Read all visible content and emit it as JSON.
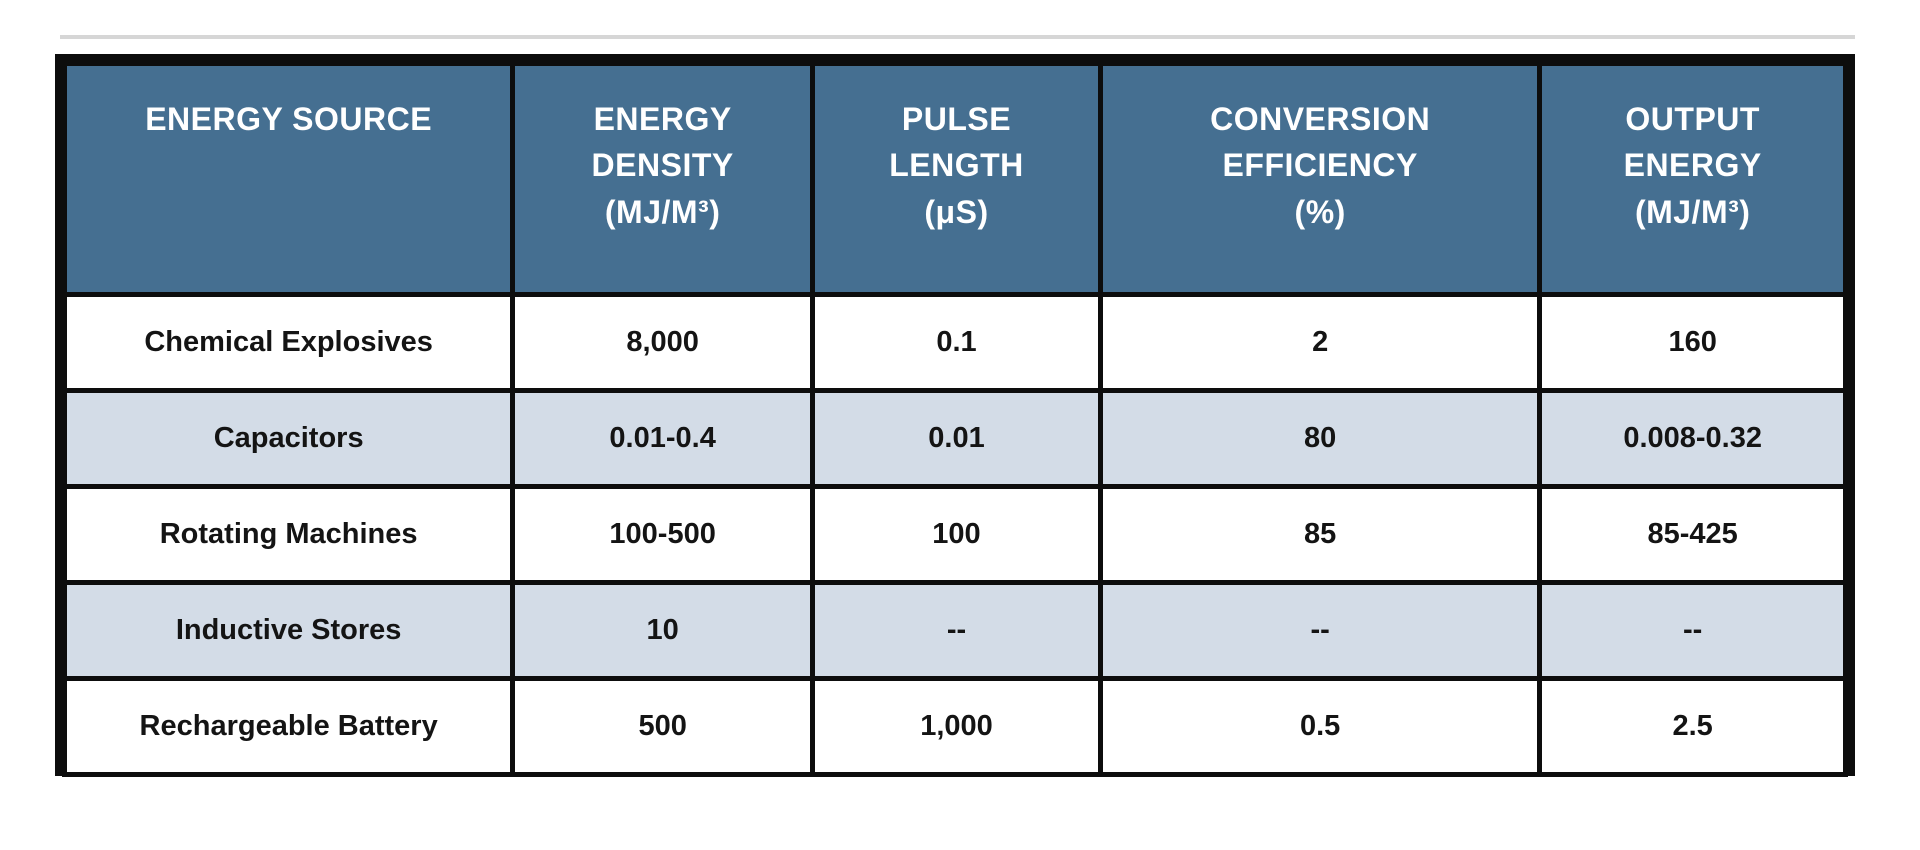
{
  "colors": {
    "header_bg": "#456F91",
    "header_text": "#FFFFFF",
    "row_bg": "#FFFFFF",
    "row_alt_bg": "#D3DCE7",
    "border": "#0D0D0D",
    "cell_text": "#141414"
  },
  "table": {
    "headers": [
      {
        "label": "ENERGY SOURCE"
      },
      {
        "label": "ENERGY\nDENSITY\n(MJ/M³)"
      },
      {
        "label": "PULSE\nLENGTH\n(μS)"
      },
      {
        "label": "CONVERSION\nEFFICIENCY\n(%)"
      },
      {
        "label": "OUTPUT\nENERGY\n(MJ/M³)"
      }
    ],
    "rows": [
      {
        "cells": [
          "Chemical Explosives",
          "8,000",
          "0.1",
          "2",
          "160"
        ]
      },
      {
        "cells": [
          "Capacitors",
          "0.01-0.4",
          "0.01",
          "80",
          "0.008-0.32"
        ]
      },
      {
        "cells": [
          "Rotating Machines",
          "100-500",
          "100",
          "85",
          "85-425"
        ]
      },
      {
        "cells": [
          "Inductive Stores",
          "10",
          "--",
          "--",
          "--"
        ]
      },
      {
        "cells": [
          "Rechargeable Battery",
          "500",
          "1,000",
          "0.5",
          "2.5"
        ]
      }
    ]
  },
  "chart_data": {
    "type": "table",
    "title": "",
    "columns": [
      "ENERGY SOURCE",
      "ENERGY DENSITY (MJ/M³)",
      "PULSE LENGTH (μS)",
      "CONVERSION EFFICIENCY (%)",
      "OUTPUT ENERGY (MJ/M³)"
    ],
    "rows": [
      [
        "Chemical Explosives",
        "8,000",
        "0.1",
        "2",
        "160"
      ],
      [
        "Capacitors",
        "0.01-0.4",
        "0.01",
        "80",
        "0.008-0.32"
      ],
      [
        "Rotating Machines",
        "100-500",
        "100",
        "85",
        "85-425"
      ],
      [
        "Inductive Stores",
        "10",
        "--",
        "--",
        "--"
      ],
      [
        "Rechargeable Battery",
        "500",
        "1,000",
        "0.5",
        "2.5"
      ]
    ]
  }
}
